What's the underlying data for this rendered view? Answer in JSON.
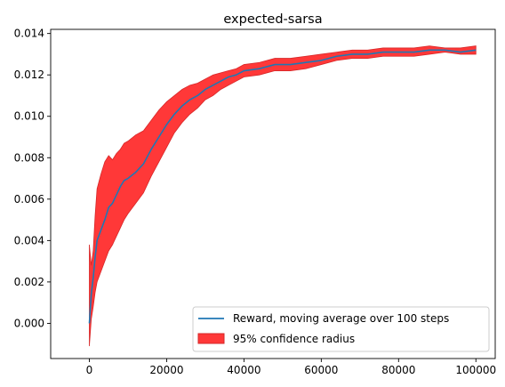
{
  "chart_data": {
    "type": "line",
    "title": "expected-sarsa",
    "xlabel": "",
    "ylabel": "",
    "xlim": [
      -10000,
      105000
    ],
    "ylim": [
      -0.0017,
      0.0142
    ],
    "xticks": [
      0,
      20000,
      40000,
      60000,
      80000,
      100000
    ],
    "xtick_labels": [
      "0",
      "20000",
      "40000",
      "60000",
      "80000",
      "100000"
    ],
    "yticks": [
      0.0,
      0.002,
      0.004,
      0.006,
      0.008,
      0.01,
      0.012,
      0.014
    ],
    "ytick_labels": [
      "0.000",
      "0.002",
      "0.004",
      "0.006",
      "0.008",
      "0.010",
      "0.012",
      "0.014"
    ],
    "grid": false,
    "legend_position": "lower right",
    "colors": {
      "line": "#1f77b4",
      "band": "#ff0000",
      "band_edge": "#d62728"
    },
    "series": [
      {
        "name": "Reward, moving average over 100 steps",
        "kind": "line",
        "x": [
          0,
          500,
          1000,
          1500,
          2000,
          3000,
          4000,
          5000,
          6000,
          7000,
          8000,
          9000,
          10000,
          12000,
          14000,
          16000,
          18000,
          20000,
          22000,
          24000,
          26000,
          28000,
          30000,
          32000,
          34000,
          36000,
          38000,
          40000,
          44000,
          48000,
          52000,
          56000,
          60000,
          64000,
          68000,
          72000,
          76000,
          80000,
          84000,
          88000,
          92000,
          96000,
          100000
        ],
        "y": [
          0.0,
          0.0014,
          0.0022,
          0.0032,
          0.004,
          0.0045,
          0.005,
          0.0056,
          0.0058,
          0.0062,
          0.0066,
          0.0069,
          0.007,
          0.0073,
          0.0077,
          0.0084,
          0.009,
          0.0096,
          0.0101,
          0.0105,
          0.0108,
          0.011,
          0.0113,
          0.0115,
          0.0117,
          0.0119,
          0.012,
          0.0122,
          0.0123,
          0.0125,
          0.0125,
          0.0126,
          0.0127,
          0.0129,
          0.013,
          0.013,
          0.0131,
          0.0131,
          0.0131,
          0.0132,
          0.0132,
          0.0131,
          0.0132
        ]
      },
      {
        "name": "95% confidence radius",
        "kind": "band",
        "x": [
          0,
          500,
          1000,
          1500,
          2000,
          3000,
          4000,
          5000,
          6000,
          7000,
          8000,
          9000,
          10000,
          12000,
          14000,
          16000,
          18000,
          20000,
          22000,
          24000,
          26000,
          28000,
          30000,
          32000,
          34000,
          36000,
          38000,
          40000,
          44000,
          48000,
          52000,
          56000,
          60000,
          64000,
          68000,
          72000,
          76000,
          80000,
          84000,
          88000,
          92000,
          96000,
          100000
        ],
        "lower": [
          -0.0011,
          0.0002,
          0.0008,
          0.0015,
          0.002,
          0.0025,
          0.003,
          0.0035,
          0.0038,
          0.0042,
          0.0046,
          0.005,
          0.0053,
          0.0058,
          0.0063,
          0.0071,
          0.0078,
          0.0085,
          0.0092,
          0.0097,
          0.0101,
          0.0104,
          0.0108,
          0.011,
          0.0113,
          0.0115,
          0.0117,
          0.0119,
          0.012,
          0.0122,
          0.0122,
          0.0123,
          0.0125,
          0.0127,
          0.0128,
          0.0128,
          0.0129,
          0.0129,
          0.0129,
          0.013,
          0.0131,
          0.013,
          0.013
        ],
        "upper": [
          0.0038,
          0.0028,
          0.0035,
          0.0052,
          0.0065,
          0.0072,
          0.0078,
          0.0081,
          0.0079,
          0.0082,
          0.0084,
          0.0087,
          0.0088,
          0.0091,
          0.0093,
          0.0098,
          0.0103,
          0.0107,
          0.011,
          0.0113,
          0.0115,
          0.0116,
          0.0118,
          0.012,
          0.0121,
          0.0122,
          0.0123,
          0.0125,
          0.0126,
          0.0128,
          0.0128,
          0.0129,
          0.013,
          0.0131,
          0.0132,
          0.0132,
          0.0133,
          0.0133,
          0.0133,
          0.0134,
          0.0133,
          0.0133,
          0.0134
        ]
      }
    ]
  }
}
